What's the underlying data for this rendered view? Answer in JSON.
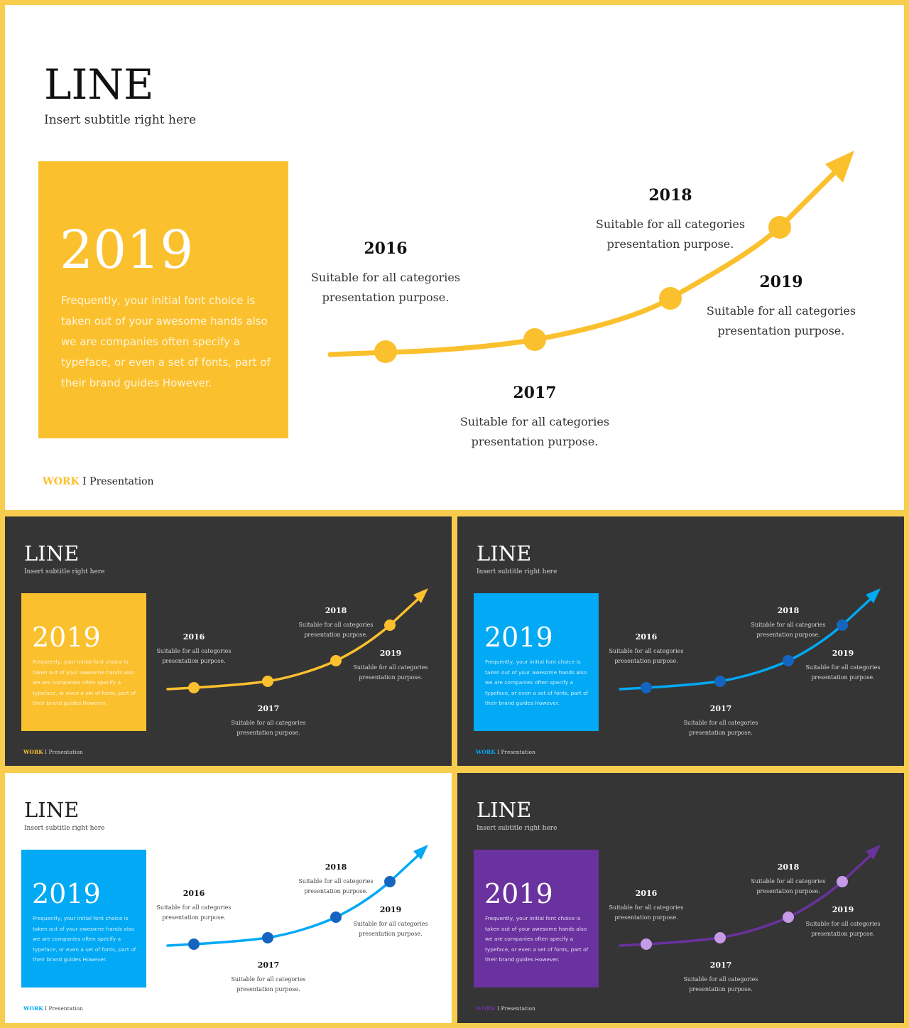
{
  "colors": {
    "frame": "#f8cd4e",
    "yellow": "#fbc02d",
    "blue": "#02a9f4",
    "blue_dot": "#1565c0",
    "purple": "#6a329f",
    "purple_dot": "#c59ae6",
    "dark_bg": "#353535",
    "light_bg": "#ffffff"
  },
  "slides": [
    {
      "title": "LINE",
      "subtitle": "Insert subtitle right here",
      "box_year": "2019",
      "box_body": "Frequently, your initial font choice is taken out of your awesome hands also we are companies often specify a typeface, or even a set of fonts, part of their brand guides However.",
      "points": [
        {
          "year": "2016",
          "line1": "Suitable for all categories",
          "line2": "presentation purpose."
        },
        {
          "year": "2017",
          "line1": "Suitable for all categories",
          "line2": "presentation purpose."
        },
        {
          "year": "2018",
          "line1": "Suitable for all categories",
          "line2": "presentation purpose."
        },
        {
          "year": "2019",
          "line1": "Suitable for all categories",
          "line2": "presentation purpose."
        }
      ],
      "footer_work": "WORK",
      "footer_rest": " I Presentation",
      "theme": "light",
      "accent": "#fbc02d",
      "dot": "#fbc02d"
    },
    {
      "title": "LINE",
      "subtitle": "Insert subtitle right here",
      "box_year": "2019",
      "box_body": "Frequently, your initial font choice is taken out of your awesome hands also we are companies often specify a typeface, or even a set of fonts, part of their brand guides However.",
      "points": [
        {
          "year": "2016",
          "line1": "Suitable for all categories",
          "line2": "presentation purpose."
        },
        {
          "year": "2017",
          "line1": "Suitable for all categories",
          "line2": "presentation purpose."
        },
        {
          "year": "2018",
          "line1": "Suitable for all categories",
          "line2": "presentation purpose."
        },
        {
          "year": "2019",
          "line1": "Suitable for all categories",
          "line2": "presentation purpose."
        }
      ],
      "footer_work": "WORK",
      "footer_rest": " I Presentation",
      "theme": "dark",
      "accent": "#fbc02d",
      "dot": "#fbc02d"
    },
    {
      "title": "LINE",
      "subtitle": "Insert subtitle right here",
      "box_year": "2019",
      "box_body": "Frequently, your initial font choice is taken out of your awesome hands also we are companies often specify a typeface, or even a set of fonts, part of their brand guides However.",
      "points": [
        {
          "year": "2016",
          "line1": "Suitable for all categories",
          "line2": "presentation purpose."
        },
        {
          "year": "2017",
          "line1": "Suitable for all categories",
          "line2": "presentation purpose."
        },
        {
          "year": "2018",
          "line1": "Suitable for all categories",
          "line2": "presentation purpose."
        },
        {
          "year": "2019",
          "line1": "Suitable for all categories",
          "line2": "presentation purpose."
        }
      ],
      "footer_work": "WORK",
      "footer_rest": " I Presentation",
      "theme": "dark",
      "accent": "#02a9f4",
      "dot": "#1565c0"
    },
    {
      "title": "LINE",
      "subtitle": "Insert subtitle right here",
      "box_year": "2019",
      "box_body": "Frequently, your initial font choice is taken out of your awesome hands also we are companies often specify a typeface, or even a set of fonts, part of their brand guides However.",
      "points": [
        {
          "year": "2016",
          "line1": "Suitable for all categories",
          "line2": "presentation purpose."
        },
        {
          "year": "2017",
          "line1": "Suitable for all categories",
          "line2": "presentation purpose."
        },
        {
          "year": "2018",
          "line1": "Suitable for all categories",
          "line2": "presentation purpose."
        },
        {
          "year": "2019",
          "line1": "Suitable for all categories",
          "line2": "presentation purpose."
        }
      ],
      "footer_work": "WORK",
      "footer_rest": " I Presentation",
      "theme": "light",
      "accent": "#02a9f4",
      "dot": "#1565c0"
    },
    {
      "title": "LINE",
      "subtitle": "Insert subtitle right here",
      "box_year": "2019",
      "box_body": "Frequently, your initial font choice is taken out of your awesome hands also we are companies often specify a typeface, or even a set of fonts, part of their brand guides However.",
      "points": [
        {
          "year": "2016",
          "line1": "Suitable for all categories",
          "line2": "presentation purpose."
        },
        {
          "year": "2017",
          "line1": "Suitable for all categories",
          "line2": "presentation purpose."
        },
        {
          "year": "2018",
          "line1": "Suitable for all categories",
          "line2": "presentation purpose."
        },
        {
          "year": "2019",
          "line1": "Suitable for all categories",
          "line2": "presentation purpose."
        }
      ],
      "footer_work": "WORK",
      "footer_rest": " I Presentation",
      "theme": "dark",
      "accent": "#6a329f",
      "dot": "#c59ae6"
    }
  ]
}
